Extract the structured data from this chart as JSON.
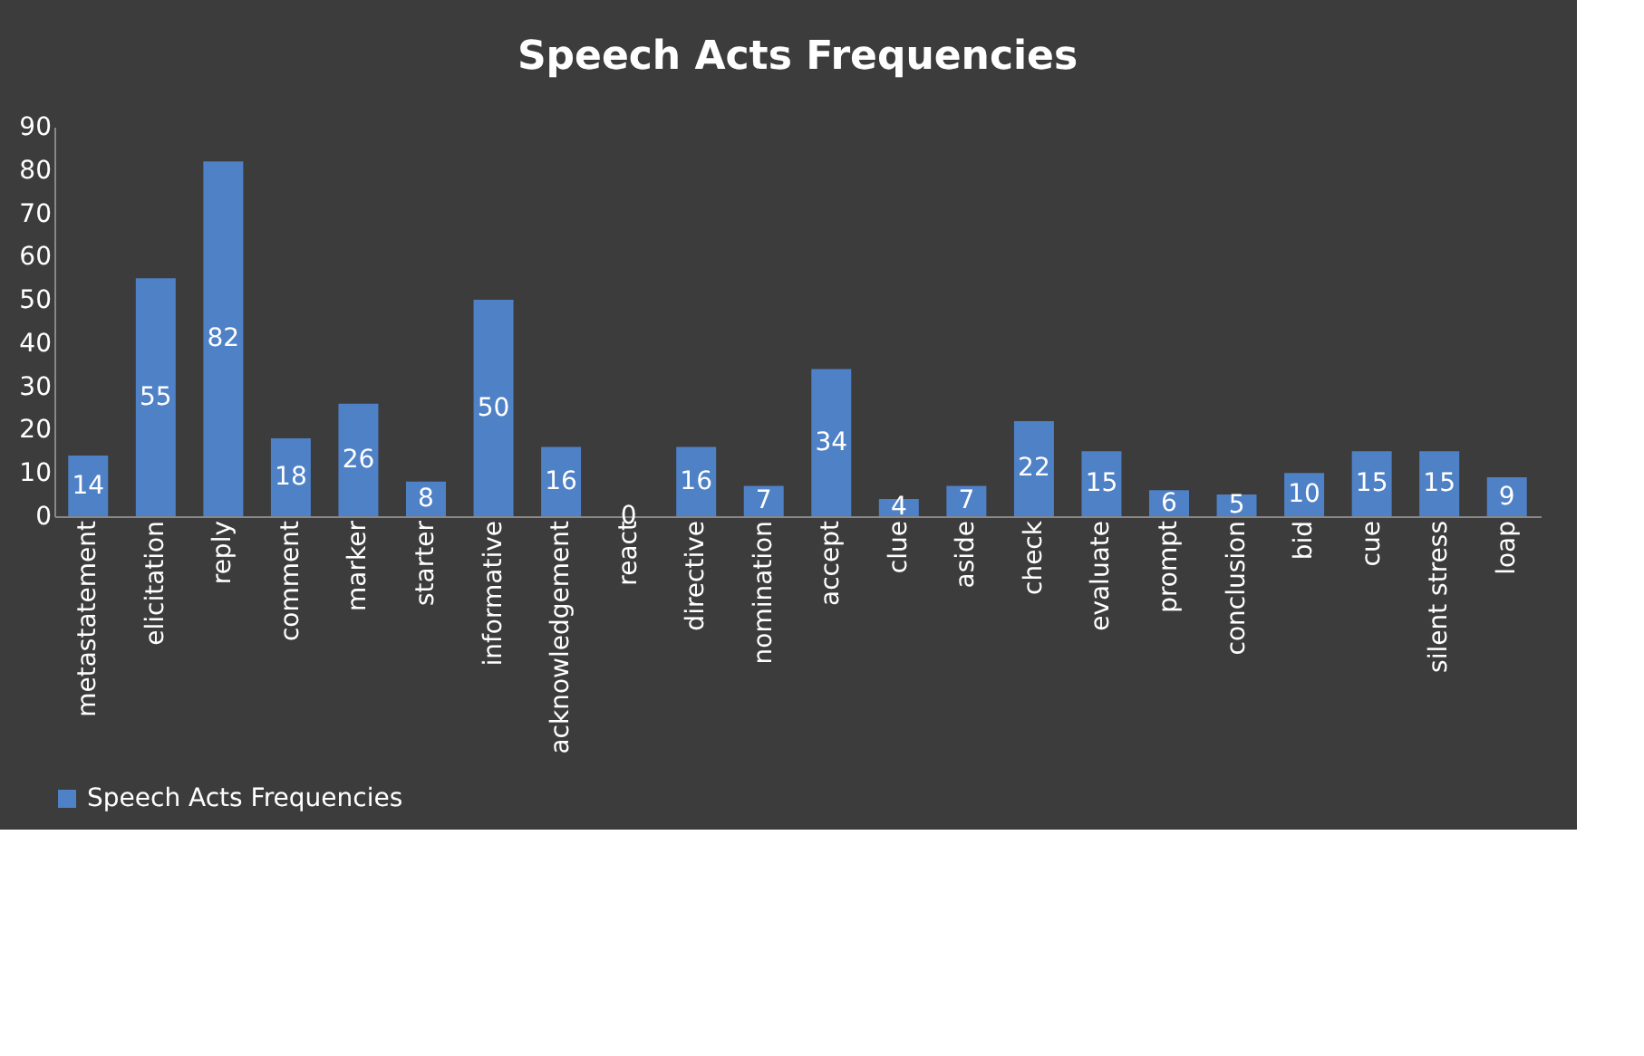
{
  "chart_data": {
    "type": "bar",
    "title": "Speech Acts Frequencies",
    "categories": [
      "metastatement",
      "elicitation",
      "reply",
      "comment",
      "marker",
      "starter",
      "informative",
      "acknowledgement",
      "react",
      "directive",
      "nomination",
      "accept",
      "clue",
      "aside",
      "check",
      "evaluate",
      "prompt",
      "conclusion",
      "bid",
      "cue",
      "silent stress",
      "loap"
    ],
    "series": [
      {
        "name": "Speech Acts Frequencies",
        "color": "#4f81c7",
        "values": [
          14,
          55,
          82,
          18,
          26,
          8,
          50,
          16,
          0,
          16,
          7,
          34,
          4,
          7,
          22,
          15,
          6,
          5,
          10,
          15,
          15,
          9
        ]
      }
    ],
    "ylim": [
      0,
      90
    ],
    "yticks": [
      0,
      10,
      20,
      30,
      40,
      50,
      60,
      70,
      80,
      90
    ],
    "grid": false,
    "legend": "bottom",
    "data_labels": true
  }
}
